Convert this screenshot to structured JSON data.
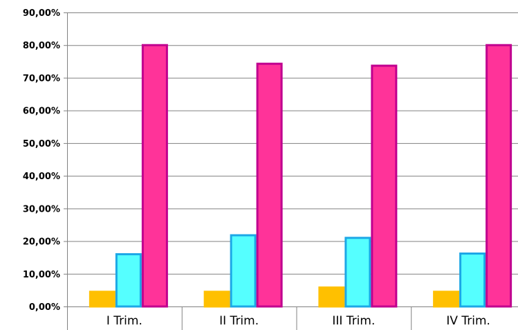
{
  "chart_data": {
    "type": "bar",
    "categories": [
      "I Trim.",
      "II Trim.",
      "III Trim.",
      "IV Trim."
    ],
    "series": [
      {
        "values": [
          4.5,
          4.5,
          5.8,
          4.5
        ],
        "color": "#FFC000",
        "stroke": "#FFC000"
      },
      {
        "values": [
          16.0,
          21.8,
          21.0,
          16.2
        ],
        "color": "#55FFFF",
        "stroke": "#1CA7E6"
      },
      {
        "values": [
          80.0,
          74.3,
          73.7,
          80.0
        ],
        "color": "#FF3399",
        "stroke": "#C0008F"
      }
    ],
    "ylim": [
      0,
      90
    ],
    "yticks": [
      "0,00%",
      "10,00%",
      "20,00%",
      "30,00%",
      "40,00%",
      "50,00%",
      "60,00%",
      "70,00%",
      "80,00%",
      "90,00%"
    ],
    "grid": true,
    "legend": "none",
    "title": "",
    "xlabel": "",
    "ylabel": ""
  }
}
